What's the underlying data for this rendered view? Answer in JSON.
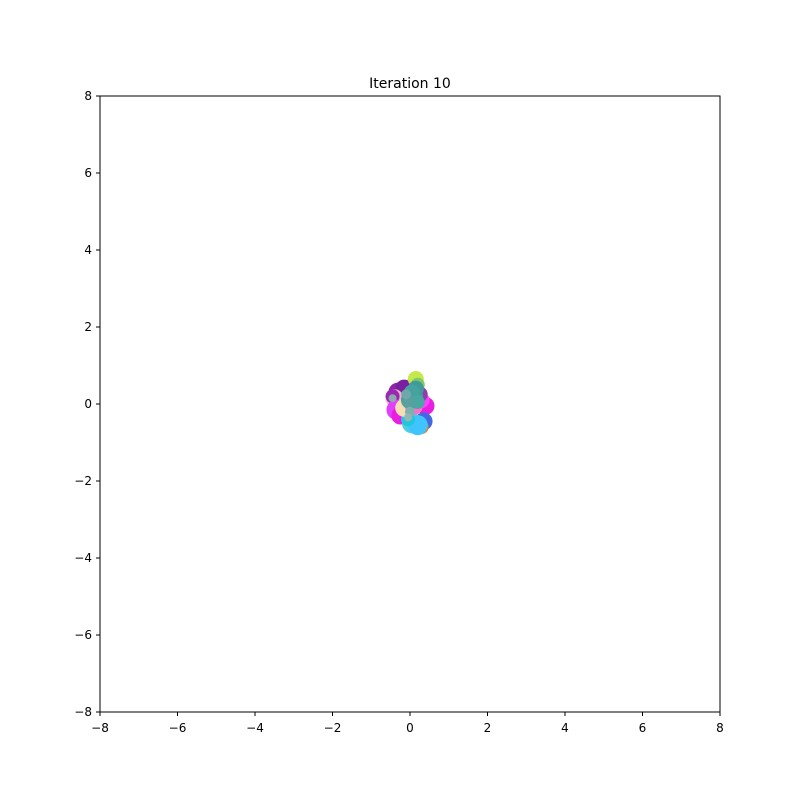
{
  "chart_data": {
    "type": "scatter",
    "title": "Iteration 10",
    "xlabel": "",
    "ylabel": "",
    "xlim": [
      -8,
      8
    ],
    "ylim": [
      -8,
      8
    ],
    "xticks": [
      "−8",
      "−6",
      "−4",
      "−2",
      "0",
      "2",
      "4",
      "6",
      "8"
    ],
    "yticks": [
      "8",
      "6",
      "4",
      "2",
      "0",
      "−2",
      "−4",
      "−6",
      "−8"
    ],
    "grid": false,
    "points": [
      {
        "x": -0.3,
        "y": 0.3,
        "r": 10,
        "color": "#8e24aa"
      },
      {
        "x": -0.15,
        "y": 0.4,
        "r": 9,
        "color": "#7b1fa2"
      },
      {
        "x": 0.15,
        "y": 0.65,
        "r": 8,
        "color": "#c6e84a"
      },
      {
        "x": 0.2,
        "y": 0.5,
        "r": 7,
        "color": "#7ec86a"
      },
      {
        "x": -0.4,
        "y": 0.15,
        "r": 9,
        "color": "#e8b4c8"
      },
      {
        "x": -0.45,
        "y": 0.2,
        "r": 7,
        "color": "#9c27b0"
      },
      {
        "x": -0.35,
        "y": -0.15,
        "r": 10,
        "color": "#e040fb"
      },
      {
        "x": -0.25,
        "y": -0.3,
        "r": 9,
        "color": "#e91ee0"
      },
      {
        "x": 0.4,
        "y": -0.05,
        "r": 9,
        "color": "#e91ee0"
      },
      {
        "x": 0.3,
        "y": 0.1,
        "r": 8,
        "color": "#ff40ff"
      },
      {
        "x": 0.35,
        "y": -0.45,
        "r": 9,
        "color": "#4169e1"
      },
      {
        "x": 0.3,
        "y": -0.6,
        "r": 7,
        "color": "#e67e22"
      },
      {
        "x": 0.05,
        "y": -0.5,
        "r": 10,
        "color": "#4dd0e1"
      },
      {
        "x": 0.2,
        "y": -0.55,
        "r": 10,
        "color": "#40c4ff"
      },
      {
        "x": -0.05,
        "y": -0.4,
        "r": 7,
        "color": "#26c6da"
      },
      {
        "x": -0.15,
        "y": -0.1,
        "r": 9,
        "color": "#f5deb3"
      },
      {
        "x": 0.1,
        "y": -0.05,
        "r": 9,
        "color": "#ff6ec7"
      },
      {
        "x": 0.25,
        "y": 0.25,
        "r": 8,
        "color": "#8b3fa8"
      },
      {
        "x": 0.0,
        "y": 0.1,
        "r": 9,
        "color": "#3f9a9a"
      },
      {
        "x": 0.1,
        "y": 0.2,
        "r": 9,
        "color": "#45a29e"
      },
      {
        "x": 0.15,
        "y": 0.4,
        "r": 8,
        "color": "#3f9a9a"
      },
      {
        "x": 0.05,
        "y": 0.3,
        "r": 8,
        "color": "#45a29e"
      },
      {
        "x": 0.2,
        "y": 0.05,
        "r": 7,
        "color": "#4aa6a0"
      },
      {
        "x": -0.05,
        "y": 0.05,
        "r": 6,
        "color": "#5aa0a0"
      },
      {
        "x": 0.0,
        "y": -0.2,
        "r": 5,
        "color": "#7fb0b0"
      },
      {
        "x": -0.1,
        "y": 0.25,
        "r": 5,
        "color": "#6fa8a8"
      },
      {
        "x": -0.45,
        "y": 0.15,
        "r": 4,
        "color": "#8fa8b0"
      },
      {
        "x": -0.05,
        "y": -0.35,
        "r": 4,
        "color": "#8fb8b8"
      }
    ]
  }
}
